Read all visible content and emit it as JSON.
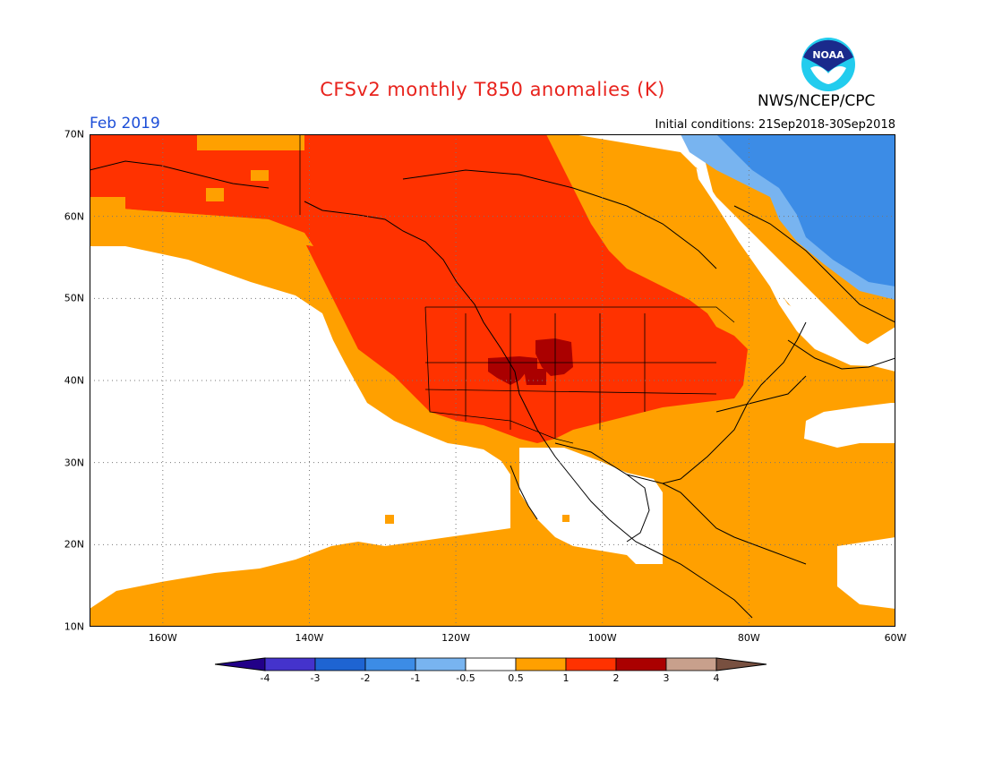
{
  "header": {
    "title": "CFSv2 monthly T850 anomalies (K)",
    "agency": "NWS/NCEP/CPC",
    "valid_month": "Feb 2019",
    "initial_conditions": "Initial conditions: 21Sep2018-30Sep2018",
    "logo_text": "NOAA"
  },
  "map": {
    "lat_range": [
      10,
      70
    ],
    "lon_range": [
      -170,
      -60
    ],
    "lat_ticks": [
      {
        "value": 70,
        "label": "70N"
      },
      {
        "value": 60,
        "label": "60N"
      },
      {
        "value": 50,
        "label": "50N"
      },
      {
        "value": 40,
        "label": "40N"
      },
      {
        "value": 30,
        "label": "30N"
      },
      {
        "value": 20,
        "label": "20N"
      },
      {
        "value": 10,
        "label": "10N"
      }
    ],
    "lon_ticks": [
      {
        "value": -160,
        "label": "160W"
      },
      {
        "value": -140,
        "label": "140W"
      },
      {
        "value": -120,
        "label": "120W"
      },
      {
        "value": -100,
        "label": "100W"
      },
      {
        "value": -80,
        "label": "80W"
      },
      {
        "value": -60,
        "label": "60W"
      }
    ],
    "grid": true
  },
  "colorbar": {
    "labels": [
      "-4",
      "-3",
      "-2",
      "-1",
      "-0.5",
      "0.5",
      "1",
      "2",
      "3",
      "4"
    ],
    "colors": [
      "#220088",
      "#4433cc",
      "#1e64d2",
      "#3c8ce6",
      "#78b4f0",
      "#ffffff",
      "#ffa000",
      "#ff3200",
      "#aa0000",
      "#c8a08c",
      "#785040"
    ]
  }
}
